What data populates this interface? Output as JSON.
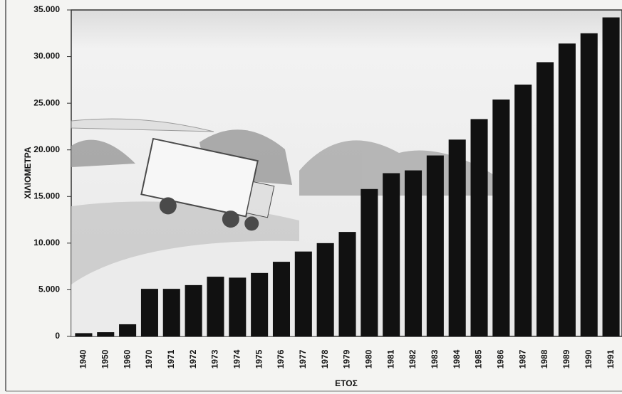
{
  "chart_data": {
    "type": "bar",
    "ylabel": "ΧΙΛΙΟΜΕΤΡΑ",
    "xlabel": "ΕΤΟΣ",
    "categories": [
      "1940",
      "1950",
      "1960",
      "1970",
      "1971",
      "1972",
      "1973",
      "1974",
      "1975",
      "1976",
      "1977",
      "1978",
      "1979",
      "1980",
      "1981",
      "1982",
      "1983",
      "1984",
      "1985",
      "1986",
      "1987",
      "1988",
      "1989",
      "1990",
      "1991"
    ],
    "values": [
      350,
      450,
      1300,
      5100,
      5100,
      5500,
      6400,
      6300,
      6800,
      8000,
      9100,
      10000,
      11200,
      15800,
      17500,
      17800,
      19400,
      21100,
      23300,
      25400,
      27000,
      29400,
      31400,
      32500,
      34200
    ],
    "color": "#111111",
    "ylim": [
      0,
      35000
    ],
    "yticks": [
      0,
      {
        "value": 5000,
        "label": "5.000"
      },
      {
        "value": 10000,
        "label": "10.000"
      },
      {
        "value": 15000,
        "label": "15.000"
      },
      {
        "value": 20000,
        "label": "20.000"
      },
      {
        "value": 25000,
        "label": "25.000"
      },
      {
        "value": 30000,
        "label": "30.000"
      },
      {
        "value": 35000,
        "label": "35.000"
      }
    ]
  }
}
